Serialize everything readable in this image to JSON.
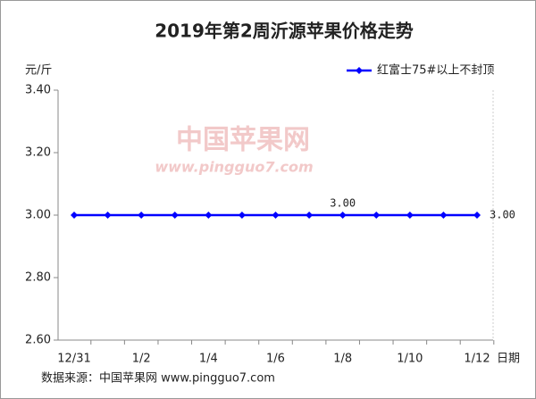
{
  "chart_data": {
    "type": "line",
    "title": "2019年第2周沂源苹果价格走势",
    "y_label": "元/斤",
    "x_label": "日期",
    "source": "数据来源：中国苹果网 www.pingguo7.com",
    "watermark": [
      "中国苹果网",
      "www.pingguo7.com"
    ],
    "categories": [
      "12/31",
      null,
      "1/2",
      null,
      "1/4",
      null,
      "1/6",
      null,
      "1/8",
      null,
      "1/10",
      null,
      "1/12"
    ],
    "series": [
      {
        "name": "红富士75#以上不封顶",
        "color": "#0000ff",
        "values": [
          3.0,
          3.0,
          3.0,
          3.0,
          3.0,
          3.0,
          3.0,
          3.0,
          3.0,
          3.0,
          3.0,
          3.0,
          3.0
        ],
        "value_labels": [
          null,
          null,
          null,
          null,
          null,
          null,
          null,
          null,
          "3.00",
          null,
          null,
          null,
          "3.00"
        ]
      }
    ],
    "ylim": [
      2.6,
      3.4
    ],
    "yticks": [
      {
        "value": 2.6,
        "label": "2.60"
      },
      {
        "value": 2.8,
        "label": "2.80"
      },
      {
        "value": 3.0,
        "label": "3.00"
      },
      {
        "value": 3.2,
        "label": "3.20"
      },
      {
        "value": 3.4,
        "label": "3.40"
      }
    ],
    "grid": false,
    "legend": "top-right"
  }
}
